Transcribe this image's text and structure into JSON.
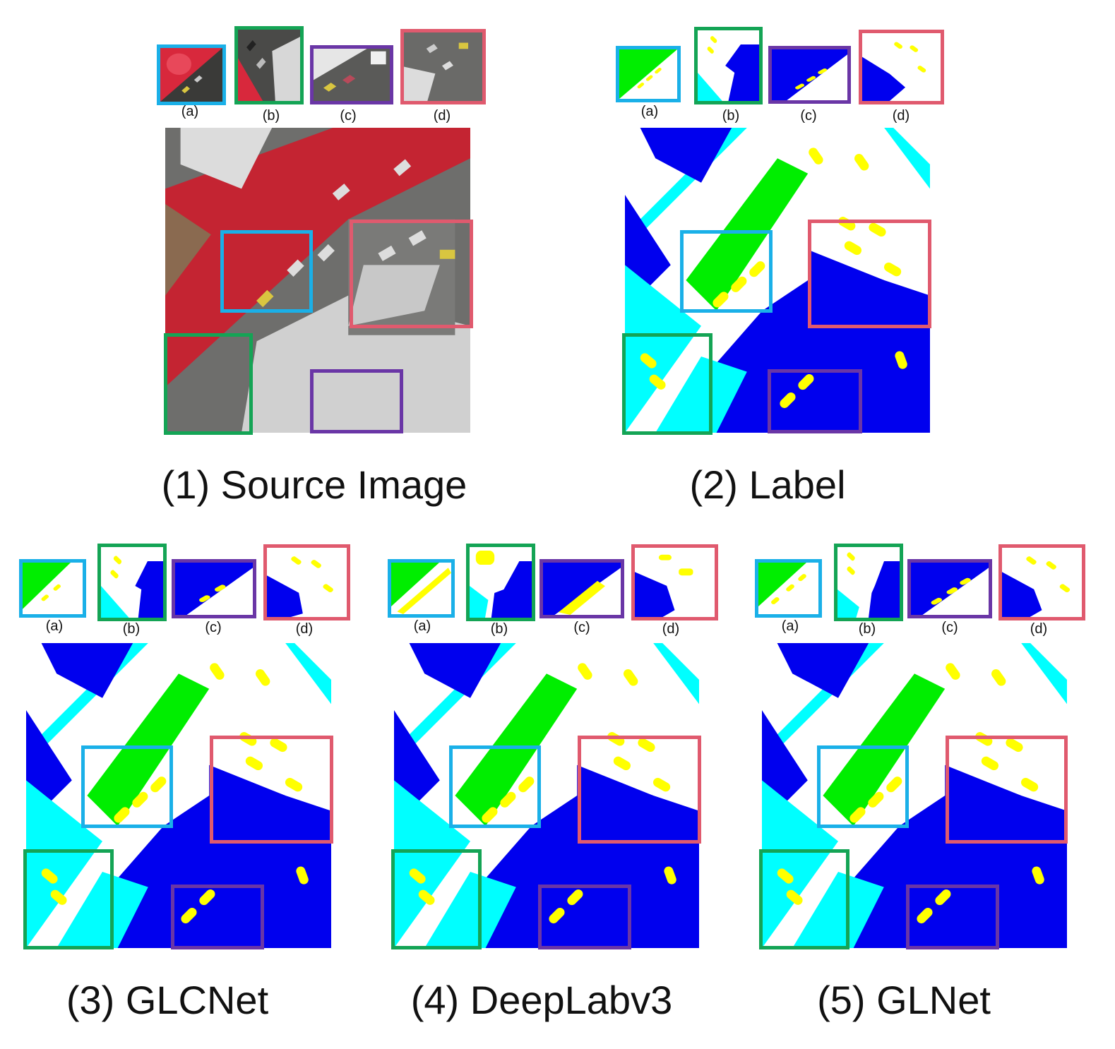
{
  "colors": {
    "box_a": "#1ab0e8",
    "box_b": "#14a455",
    "box_c": "#6a36a6",
    "box_d": "#e05a6e",
    "class_building": "#0000ee",
    "class_low_veg": "#00ffff",
    "class_tree": "#00ee00",
    "class_car": "#ffff00",
    "class_surface": "#ffffff"
  },
  "thumb_labels": {
    "a": "(a)",
    "b": "(b)",
    "c": "(c)",
    "d": "(d)"
  },
  "panels": [
    {
      "id": "source",
      "caption": "(1) Source Image",
      "kind": "photo"
    },
    {
      "id": "label",
      "caption": "(2) Label",
      "kind": "segmentation"
    },
    {
      "id": "glcnet",
      "caption": "(3) GLCNet",
      "kind": "segmentation"
    },
    {
      "id": "deeplab",
      "caption": "(4) DeepLabv3",
      "kind": "segmentation"
    },
    {
      "id": "glnet",
      "caption": "(5) GLNet",
      "kind": "segmentation"
    }
  ]
}
